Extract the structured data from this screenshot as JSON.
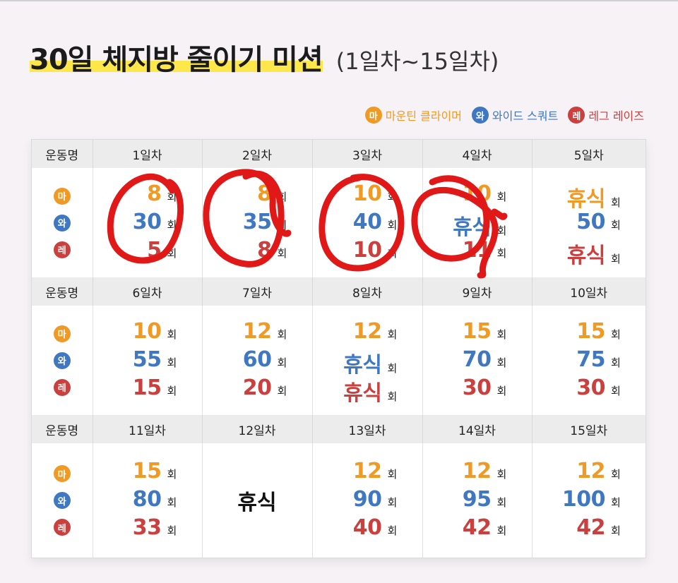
{
  "title": "30일 체지방 줄이기 미션",
  "subtitle": "(1일차~15일차)",
  "colors": {
    "ma": "#ef9a24",
    "wa": "#3f78c1",
    "re": "#c9403e",
    "marker": "#e01818",
    "highlight": "#fde74b"
  },
  "legend": [
    {
      "badge": "마",
      "label": "마운틴 클라이머",
      "key": "ma"
    },
    {
      "badge": "와",
      "label": "와이드 스쿼트",
      "key": "wa"
    },
    {
      "badge": "레",
      "label": "레그 레이즈",
      "key": "re"
    }
  ],
  "row_badges": [
    "마",
    "와",
    "레"
  ],
  "unit": "회",
  "exercise_header": "운동명",
  "rows": [
    {
      "days": [
        "1일차",
        "2일차",
        "3일차",
        "4일차",
        "5일차"
      ],
      "values": [
        [
          "8",
          "30",
          "5"
        ],
        [
          "8",
          "35",
          "8"
        ],
        [
          "10",
          "40",
          "10"
        ],
        [
          "10",
          "휴식",
          "11"
        ],
        [
          "휴식",
          "50",
          "휴식"
        ]
      ]
    },
    {
      "days": [
        "6일차",
        "7일차",
        "8일차",
        "9일차",
        "10일차"
      ],
      "values": [
        [
          "10",
          "55",
          "15"
        ],
        [
          "12",
          "60",
          "20"
        ],
        [
          "12",
          "휴식",
          "휴식"
        ],
        [
          "15",
          "70",
          "30"
        ],
        [
          "15",
          "75",
          "30"
        ]
      ]
    },
    {
      "days": [
        "11일차",
        "12일차",
        "13일차",
        "14일차",
        "15일차"
      ],
      "rest_label": "휴식",
      "values": [
        [
          "15",
          "80",
          "33"
        ],
        null,
        [
          "12",
          "90",
          "40"
        ],
        [
          "12",
          "95",
          "42"
        ],
        [
          "12",
          "100",
          "42"
        ]
      ]
    }
  ]
}
